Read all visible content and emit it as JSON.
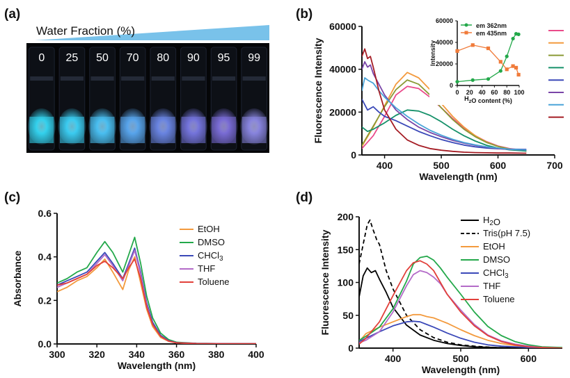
{
  "panel_labels": [
    "(a)",
    "(b)",
    "(c)",
    "(d)"
  ],
  "photo": {
    "title": "Water Fraction (%)",
    "vials": [
      "0",
      "25",
      "50",
      "70",
      "80",
      "90",
      "95",
      "99"
    ],
    "vial_glow_colors": [
      "#34d6f2",
      "#3cd0f5",
      "#4bc2f5",
      "#5aa8f0",
      "#6b86e6",
      "#7676e0",
      "#7b6ed9",
      "#8a86e2"
    ],
    "wedge_color": "#79c2ea"
  },
  "chart_data": [
    {
      "panel": "(b)",
      "type": "line",
      "xlabel": "Wavelength (nm)",
      "ylabel": "Fluorescence Intensity",
      "xlim": [
        360,
        700
      ],
      "ylim": [
        0,
        60000
      ],
      "xticks": [
        400,
        500,
        600,
        700
      ],
      "yticks": [
        0,
        20000,
        40000,
        60000
      ],
      "series": [
        {
          "color": "#ea4a8a",
          "x": [
            360,
            380,
            400,
            420,
            440,
            460,
            480,
            500,
            520,
            540,
            560,
            580,
            600,
            620,
            650
          ],
          "y": [
            3000,
            9000,
            18000,
            28000,
            32000,
            31000,
            27000,
            22000,
            17000,
            12500,
            9000,
            6200,
            4200,
            3000,
            2000
          ]
        },
        {
          "color": "#f39a3d",
          "x": [
            360,
            380,
            400,
            420,
            440,
            460,
            480,
            500,
            520,
            540,
            560,
            580,
            600,
            620,
            650
          ],
          "y": [
            4000,
            13000,
            23000,
            33000,
            38500,
            36000,
            30500,
            24000,
            18000,
            13000,
            9000,
            6000,
            4000,
            2800,
            1800
          ]
        },
        {
          "color": "#8a9a35",
          "x": [
            360,
            380,
            400,
            420,
            440,
            460,
            480,
            500,
            520,
            540,
            560,
            580,
            600,
            620,
            650
          ],
          "y": [
            4500,
            13500,
            22500,
            30500,
            35000,
            33000,
            28000,
            22000,
            16500,
            12000,
            8500,
            5800,
            4000,
            2800,
            1800
          ]
        },
        {
          "color": "#16916a",
          "x": [
            360,
            370,
            380,
            400,
            420,
            440,
            460,
            480,
            500,
            520,
            540,
            560,
            580,
            600,
            620,
            650
          ],
          "y": [
            13000,
            11000,
            12000,
            15000,
            18500,
            21000,
            20500,
            18500,
            15500,
            12000,
            9000,
            6500,
            4500,
            3200,
            2400,
            1800
          ]
        },
        {
          "color": "#3a48b8",
          "x": [
            360,
            370,
            380,
            390,
            400,
            420,
            440,
            460,
            480,
            500,
            520,
            540,
            560,
            580,
            600,
            620,
            650
          ],
          "y": [
            26000,
            21000,
            22500,
            20000,
            18000,
            16000,
            13500,
            11000,
            9000,
            7200,
            5800,
            4600,
            3800,
            3200,
            2900,
            2700,
            2600
          ]
        },
        {
          "color": "#7a45a8",
          "x": [
            360,
            365,
            370,
            375,
            380,
            390,
            400,
            420,
            440,
            460,
            480,
            500,
            520,
            540,
            560,
            580,
            600,
            620,
            650
          ],
          "y": [
            40000,
            43500,
            41000,
            42000,
            38000,
            33000,
            28000,
            21000,
            16500,
            13000,
            10500,
            8500,
            6800,
            5500,
            4500,
            3700,
            3000,
            2600,
            2300
          ]
        },
        {
          "color": "#4aa4d8",
          "x": [
            360,
            365,
            370,
            380,
            390,
            400,
            420,
            440,
            460,
            480,
            500,
            520,
            540,
            560,
            580,
            600,
            620,
            650
          ],
          "y": [
            30000,
            36000,
            35000,
            33500,
            30000,
            27000,
            22000,
            18000,
            14500,
            11500,
            9200,
            7300,
            5800,
            4700,
            3800,
            3200,
            2700,
            2300
          ]
        },
        {
          "color": "#a51c24",
          "x": [
            360,
            365,
            370,
            375,
            380,
            390,
            400,
            420,
            440,
            460,
            480,
            500,
            520,
            540,
            560,
            580,
            600,
            620,
            650
          ],
          "y": [
            46000,
            49500,
            45000,
            46000,
            41000,
            30000,
            21000,
            12000,
            7000,
            4500,
            3000,
            2200,
            1700,
            1300,
            1100,
            1000,
            900,
            900,
            800
          ]
        }
      ]
    },
    {
      "panel": "(b) inset",
      "type": "line",
      "xlabel": "H₂O content (%)",
      "ylabel": "Intensity",
      "xlim": [
        0,
        100
      ],
      "ylim": [
        0,
        60000
      ],
      "xticks": [
        0,
        20,
        40,
        60,
        80,
        100
      ],
      "yticks": [
        0,
        20000,
        40000,
        60000
      ],
      "series": [
        {
          "name": "em 362nm",
          "color": "#23a84a",
          "x": [
            0,
            25,
            50,
            70,
            80,
            90,
            95,
            99
          ],
          "y": [
            3500,
            5000,
            6000,
            13500,
            27000,
            43500,
            48000,
            47500
          ]
        },
        {
          "name": "em 435nm",
          "color": "#f07b3a",
          "x": [
            0,
            25,
            50,
            70,
            80,
            90,
            95,
            99
          ],
          "y": [
            32000,
            37500,
            34500,
            22000,
            15000,
            18000,
            16500,
            10000
          ]
        }
      ]
    },
    {
      "panel": "(c)",
      "type": "line",
      "xlabel": "Wavelength (nm)",
      "ylabel": "Absorbance",
      "xlim": [
        300,
        400
      ],
      "ylim": [
        0,
        0.6
      ],
      "xticks": [
        300,
        320,
        340,
        360,
        380,
        400
      ],
      "yticks": [
        0.0,
        0.2,
        0.4,
        0.6
      ],
      "ytick_labels": [
        "0.0",
        "0.2",
        "0.4",
        "0.6"
      ],
      "legend_position": "right",
      "series": [
        {
          "name": "EtOH",
          "color": "#f39a3d",
          "x": [
            300,
            305,
            310,
            315,
            320,
            324,
            328,
            333,
            336,
            339,
            342,
            345,
            348,
            352,
            356,
            360,
            370,
            380,
            400
          ],
          "y": [
            0.24,
            0.26,
            0.29,
            0.31,
            0.35,
            0.39,
            0.33,
            0.25,
            0.34,
            0.4,
            0.28,
            0.16,
            0.08,
            0.03,
            0.012,
            0.005,
            0.002,
            0.001,
            0.001
          ]
        },
        {
          "name": "DMSO",
          "color": "#23a84a",
          "x": [
            300,
            305,
            310,
            315,
            320,
            324,
            328,
            333,
            336,
            339,
            342,
            345,
            348,
            352,
            356,
            360,
            370,
            380,
            400
          ],
          "y": [
            0.28,
            0.3,
            0.33,
            0.35,
            0.42,
            0.47,
            0.42,
            0.33,
            0.41,
            0.49,
            0.37,
            0.22,
            0.12,
            0.05,
            0.02,
            0.008,
            0.003,
            0.002,
            0.001
          ]
        },
        {
          "name": "CHCl₃",
          "color": "#3a48b8",
          "x": [
            300,
            305,
            310,
            315,
            320,
            324,
            328,
            333,
            336,
            339,
            342,
            345,
            348,
            352,
            356,
            360,
            370,
            380,
            400
          ],
          "y": [
            0.27,
            0.29,
            0.31,
            0.33,
            0.38,
            0.42,
            0.37,
            0.3,
            0.37,
            0.44,
            0.33,
            0.19,
            0.1,
            0.04,
            0.015,
            0.006,
            0.003,
            0.002,
            0.001
          ]
        },
        {
          "name": "THF",
          "color": "#b36bc8",
          "x": [
            300,
            305,
            310,
            315,
            320,
            324,
            328,
            333,
            336,
            339,
            342,
            345,
            348,
            352,
            356,
            360,
            370,
            380,
            400
          ],
          "y": [
            0.26,
            0.28,
            0.3,
            0.32,
            0.37,
            0.41,
            0.36,
            0.29,
            0.36,
            0.43,
            0.32,
            0.18,
            0.09,
            0.035,
            0.013,
            0.005,
            0.002,
            0.001,
            0.001
          ]
        },
        {
          "name": "Toluene",
          "color": "#e2403a",
          "x": [
            300,
            305,
            310,
            315,
            320,
            324,
            328,
            333,
            336,
            339,
            342,
            345,
            348,
            352,
            356,
            360,
            370,
            380,
            400
          ],
          "y": [
            0.27,
            0.28,
            0.3,
            0.32,
            0.36,
            0.38,
            0.35,
            0.3,
            0.35,
            0.39,
            0.3,
            0.17,
            0.09,
            0.035,
            0.013,
            0.005,
            0.002,
            0.001,
            0.001
          ]
        }
      ]
    },
    {
      "panel": "(d)",
      "type": "line",
      "xlabel": "Wavelength (nm)",
      "ylabel": "Fluorescence Intensity",
      "xlim": [
        350,
        650
      ],
      "ylim": [
        0,
        200
      ],
      "xticks": [
        400,
        500,
        600
      ],
      "yticks": [
        0,
        50,
        100,
        150,
        200
      ],
      "legend_position": "top-right",
      "series": [
        {
          "name": "H₂O",
          "color": "#000000",
          "dash": false,
          "x": [
            350,
            356,
            362,
            368,
            374,
            380,
            390,
            400,
            420,
            440,
            460,
            480,
            500,
            520,
            550,
            600
          ],
          "y": [
            78,
            110,
            122,
            115,
            118,
            105,
            85,
            62,
            35,
            20,
            12,
            7,
            4,
            2,
            1,
            0
          ]
        },
        {
          "name": "Tris(pH 7.5)",
          "color": "#000000",
          "dash": true,
          "x": [
            350,
            356,
            362,
            366,
            370,
            376,
            380,
            390,
            400,
            420,
            440,
            460,
            480,
            500,
            520,
            550,
            600
          ],
          "y": [
            128,
            158,
            188,
            195,
            182,
            165,
            158,
            118,
            90,
            50,
            28,
            16,
            9,
            5,
            3,
            1,
            0
          ]
        },
        {
          "name": "EtOH",
          "color": "#f39a3d",
          "x": [
            350,
            360,
            380,
            400,
            420,
            430,
            440,
            450,
            460,
            480,
            500,
            520,
            540,
            560,
            580,
            600,
            620,
            650
          ],
          "y": [
            10,
            22,
            32,
            40,
            48,
            51,
            51,
            48,
            46,
            38,
            28,
            19,
            12,
            7,
            4,
            2,
            1,
            0
          ]
        },
        {
          "name": "DMSO",
          "color": "#23a84a",
          "x": [
            350,
            360,
            380,
            400,
            420,
            430,
            440,
            450,
            460,
            470,
            480,
            500,
            520,
            540,
            560,
            580,
            600,
            620,
            650
          ],
          "y": [
            12,
            18,
            32,
            60,
            102,
            128,
            138,
            140,
            134,
            122,
            108,
            82,
            55,
            33,
            19,
            10,
            5,
            2,
            1
          ]
        },
        {
          "name": "CHCl₃",
          "color": "#3a48b8",
          "x": [
            350,
            360,
            380,
            400,
            420,
            430,
            440,
            450,
            460,
            480,
            500,
            520,
            540,
            560,
            580,
            600,
            620,
            650
          ],
          "y": [
            10,
            15,
            25,
            34,
            40,
            41,
            40,
            36,
            32,
            23,
            15,
            9,
            5,
            3,
            2,
            1,
            0,
            0
          ]
        },
        {
          "name": "THF",
          "color": "#b36bc8",
          "x": [
            350,
            360,
            380,
            400,
            420,
            430,
            440,
            450,
            460,
            470,
            480,
            500,
            520,
            540,
            560,
            580,
            600,
            620,
            650
          ],
          "y": [
            8,
            12,
            25,
            55,
            95,
            112,
            118,
            115,
            108,
            98,
            82,
            58,
            36,
            20,
            11,
            6,
            3,
            1,
            0
          ]
        },
        {
          "name": "Toluene",
          "color": "#e2403a",
          "x": [
            350,
            360,
            380,
            400,
            420,
            430,
            440,
            450,
            460,
            470,
            480,
            500,
            520,
            540,
            560,
            580,
            600,
            620,
            650
          ],
          "y": [
            6,
            15,
            40,
            80,
            118,
            130,
            133,
            128,
            118,
            100,
            82,
            55,
            34,
            19,
            10,
            5,
            2,
            1,
            0
          ]
        }
      ]
    }
  ]
}
